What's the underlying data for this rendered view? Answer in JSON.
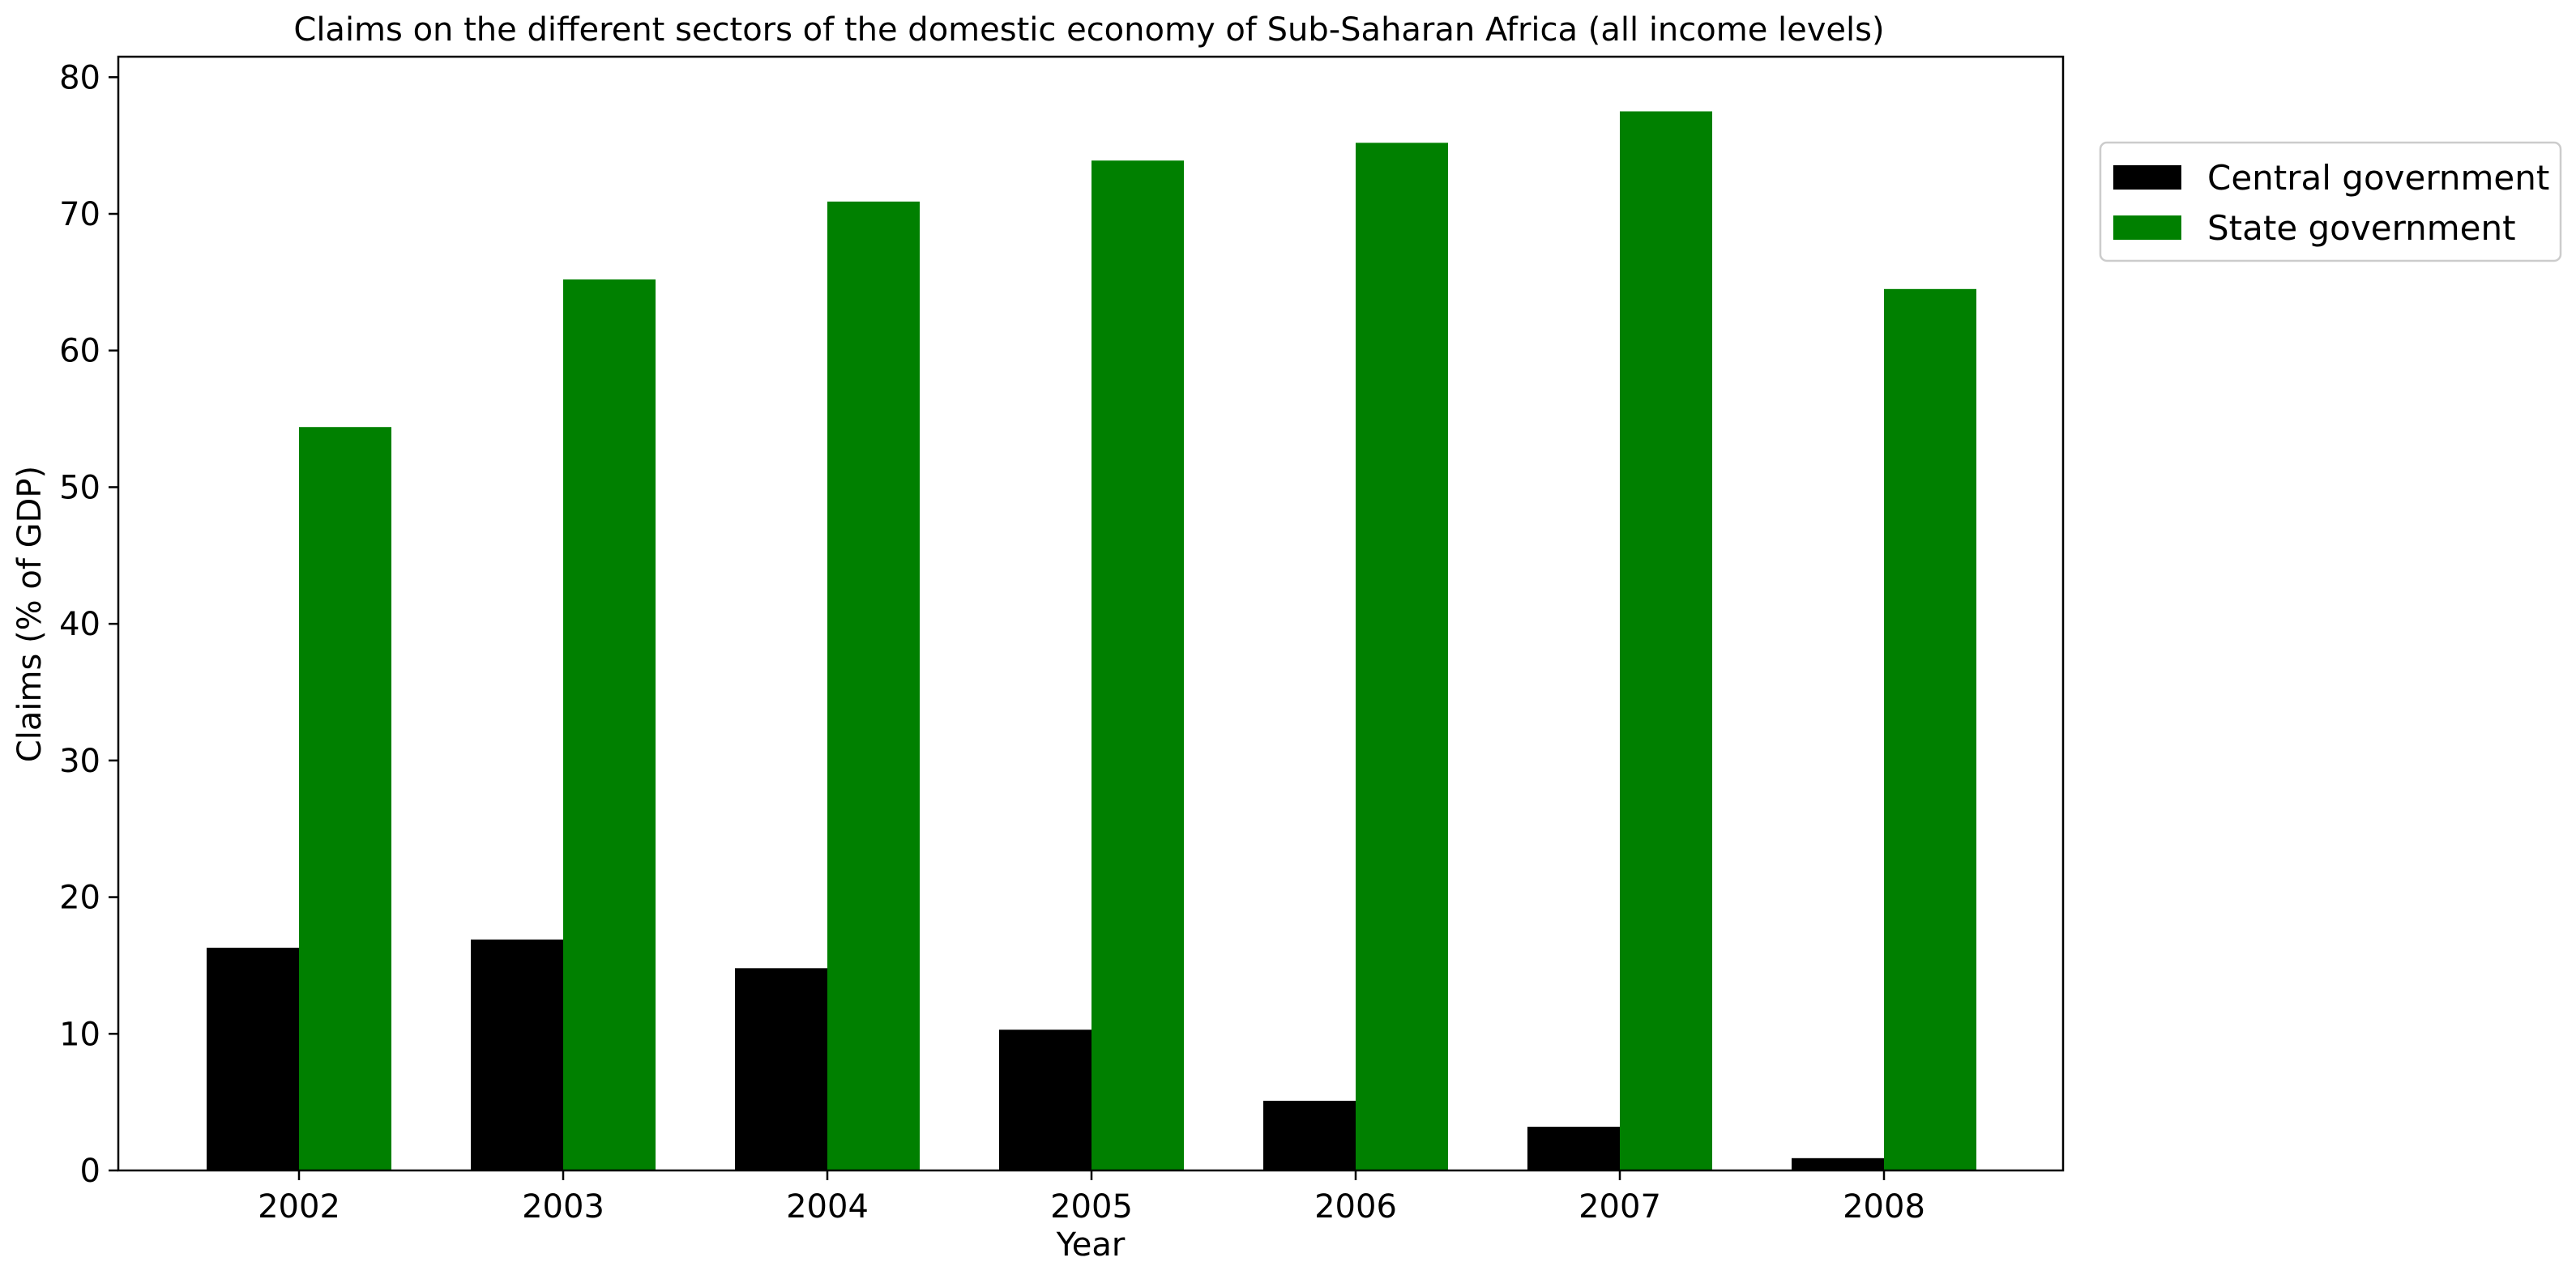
{
  "chart_data": {
    "type": "bar",
    "title": "Claims on the different sectors of the domestic economy of Sub-Saharan Africa (all income levels)",
    "xlabel": "Year",
    "ylabel": "Claims (% of GDP)",
    "categories": [
      "2002",
      "2003",
      "2004",
      "2005",
      "2006",
      "2007",
      "2008"
    ],
    "series": [
      {
        "name": "Central government",
        "color": "#000000",
        "values": [
          16.3,
          16.9,
          14.8,
          10.3,
          5.1,
          3.2,
          0.9
        ]
      },
      {
        "name": "State government",
        "color": "#008000",
        "values": [
          54.4,
          65.2,
          70.9,
          73.9,
          75.2,
          77.5,
          64.5
        ]
      }
    ],
    "ylim": [
      0,
      81.5
    ],
    "yticks": [
      0,
      10,
      20,
      30,
      40,
      50,
      60,
      70,
      80
    ],
    "grid": false,
    "legend_position": "outside right, top"
  }
}
